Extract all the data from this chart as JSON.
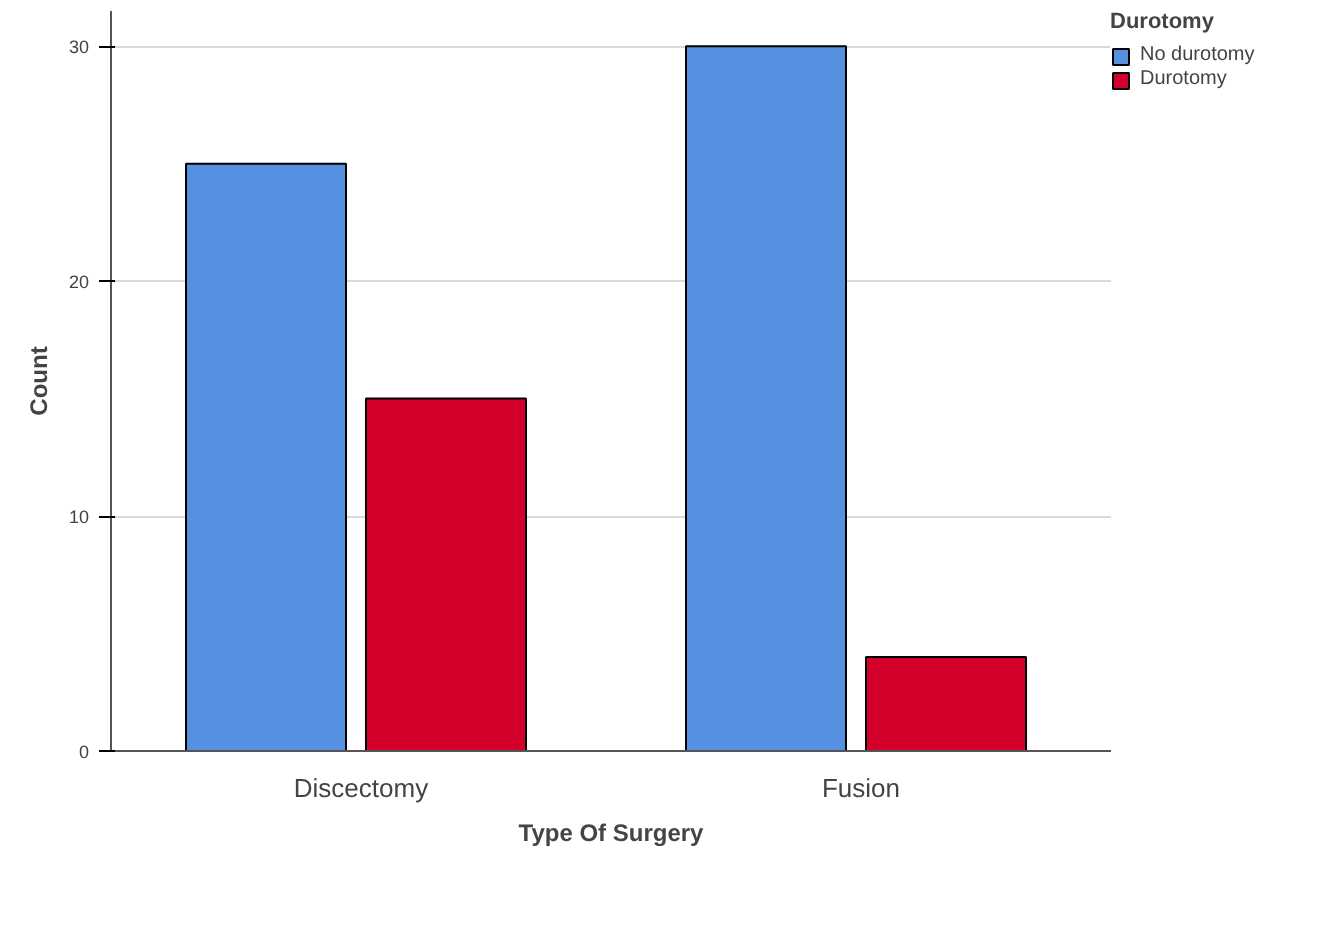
{
  "chart_data": {
    "type": "bar",
    "xlabel": "Type Of Surgery",
    "ylabel": "Count",
    "legend_title": "Durotomy",
    "categories": [
      "Discectomy",
      "Fusion"
    ],
    "series": [
      {
        "name": "No durotomy",
        "color": "#5591e0",
        "values": [
          25,
          30
        ]
      },
      {
        "name": "Durotomy",
        "color": "#d2002a",
        "values": [
          15,
          4
        ]
      }
    ],
    "ylim": [
      0,
      31.5
    ],
    "yticks": [
      0,
      10,
      20,
      30
    ],
    "grid": "y",
    "legend": "top right"
  }
}
